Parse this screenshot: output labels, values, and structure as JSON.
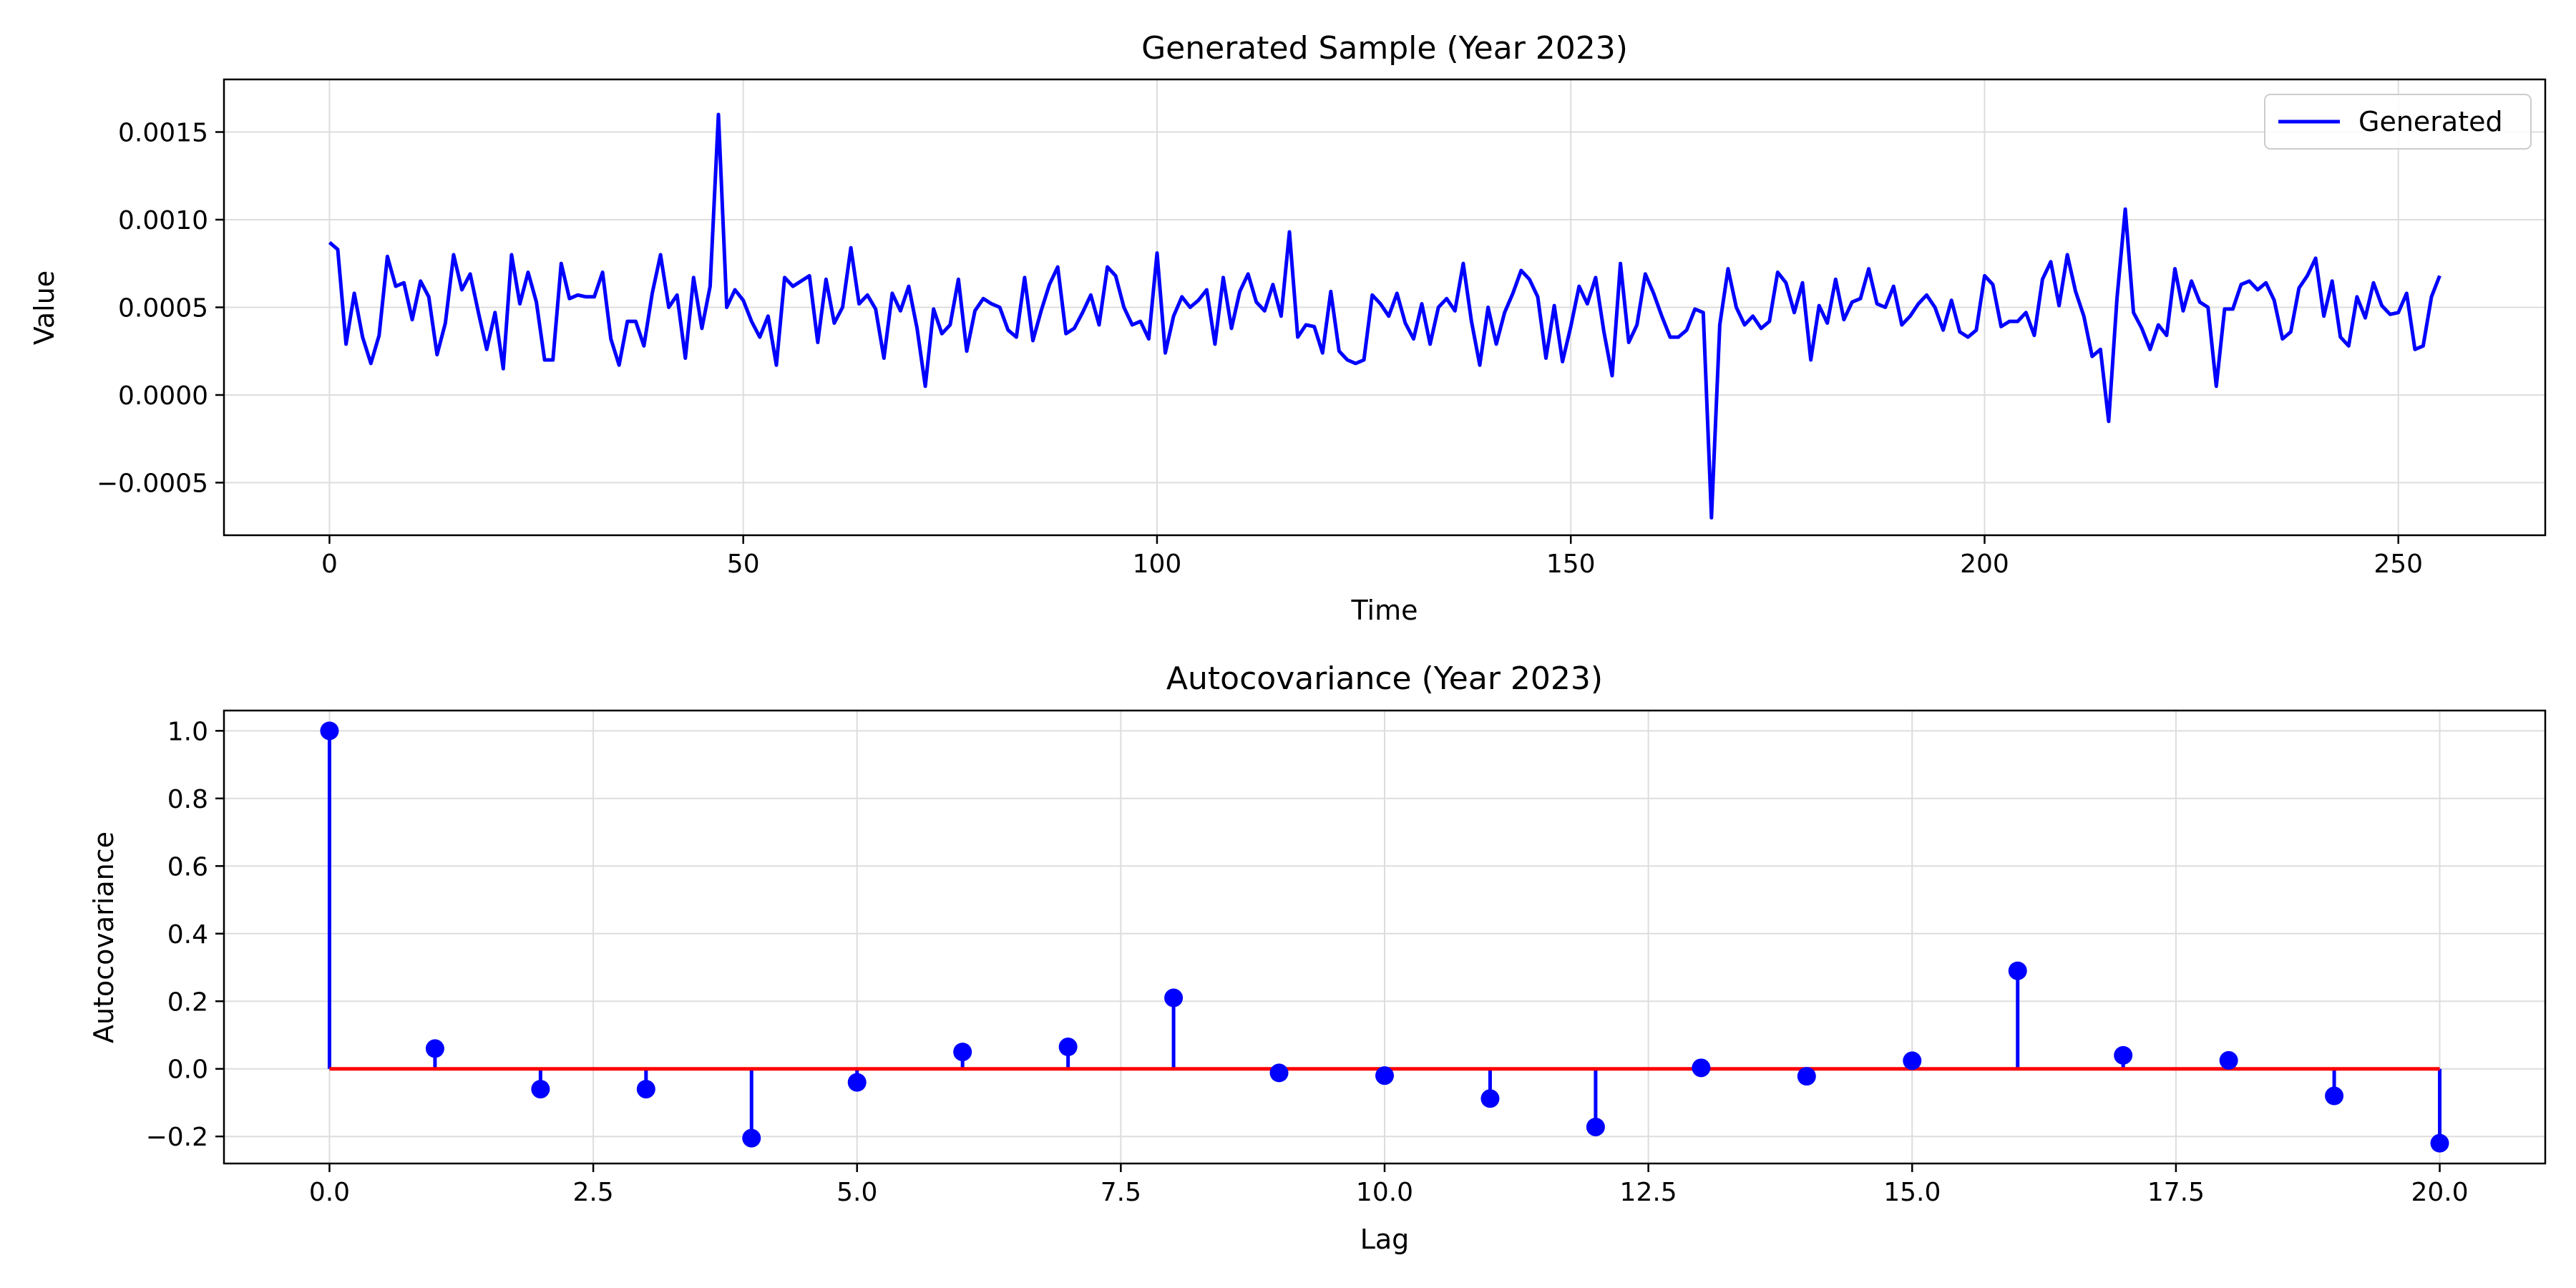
{
  "chart_data": [
    {
      "type": "line",
      "title": "Generated Sample (Year 2023)",
      "xlabel": "Time",
      "ylabel": "Value",
      "xlim": [
        -12.75,
        267.75
      ],
      "ylim": [
        -0.0008,
        0.0018
      ],
      "xticks": [
        0,
        50,
        100,
        150,
        200,
        250
      ],
      "xtick_labels": [
        "0",
        "50",
        "100",
        "150",
        "200",
        "250"
      ],
      "yticks": [
        -0.0005,
        0.0,
        0.0005,
        0.001,
        0.0015
      ],
      "ytick_labels": [
        "−0.0005",
        "0.0000",
        "0.0005",
        "0.0010",
        "0.0015"
      ],
      "grid": true,
      "legend": {
        "position": "top-right",
        "entries": [
          "Generated"
        ]
      },
      "series": [
        {
          "name": "Generated",
          "color": "#0000ff",
          "values": [
            0.00087,
            0.00083,
            0.00029,
            0.00058,
            0.00033,
            0.00018,
            0.00034,
            0.00079,
            0.00062,
            0.00064,
            0.00043,
            0.00065,
            0.00056,
            0.00023,
            0.00041,
            0.0008,
            0.0006,
            0.00069,
            0.00047,
            0.00026,
            0.00047,
            0.00015,
            0.0008,
            0.00052,
            0.0007,
            0.00053,
            0.0002,
            0.0002,
            0.00075,
            0.00055,
            0.00057,
            0.00056,
            0.00056,
            0.0007,
            0.00032,
            0.00017,
            0.00042,
            0.00042,
            0.00028,
            0.00058,
            0.0008,
            0.0005,
            0.00057,
            0.00021,
            0.00067,
            0.00038,
            0.00062,
            0.0016,
            0.0005,
            0.0006,
            0.00054,
            0.00042,
            0.00033,
            0.00045,
            0.00017,
            0.00067,
            0.00062,
            0.00065,
            0.00068,
            0.0003,
            0.00066,
            0.00041,
            0.0005,
            0.00084,
            0.00052,
            0.00057,
            0.00049,
            0.00021,
            0.00058,
            0.00048,
            0.00062,
            0.00038,
            5e-05,
            0.00049,
            0.00035,
            0.0004,
            0.00066,
            0.00025,
            0.00048,
            0.00055,
            0.00052,
            0.0005,
            0.00037,
            0.00033,
            0.00067,
            0.00031,
            0.00048,
            0.00063,
            0.00073,
            0.00035,
            0.00038,
            0.00047,
            0.00057,
            0.0004,
            0.00073,
            0.00068,
            0.0005,
            0.0004,
            0.00042,
            0.00032,
            0.00081,
            0.00024,
            0.00045,
            0.00056,
            0.0005,
            0.00054,
            0.0006,
            0.00029,
            0.00067,
            0.00038,
            0.00059,
            0.00069,
            0.00053,
            0.00048,
            0.00063,
            0.00045,
            0.00093,
            0.00033,
            0.0004,
            0.00039,
            0.00024,
            0.00059,
            0.00025,
            0.0002,
            0.00018,
            0.0002,
            0.00057,
            0.00052,
            0.00045,
            0.00058,
            0.00041,
            0.00032,
            0.00052,
            0.00029,
            0.0005,
            0.00055,
            0.00048,
            0.00075,
            0.00042,
            0.00017,
            0.0005,
            0.00029,
            0.00047,
            0.00058,
            0.00071,
            0.00066,
            0.00056,
            0.00021,
            0.00051,
            0.00019,
            0.00039,
            0.00062,
            0.00052,
            0.00067,
            0.00036,
            0.00011,
            0.00075,
            0.0003,
            0.0004,
            0.00069,
            0.00058,
            0.00045,
            0.00033,
            0.00033,
            0.00037,
            0.00049,
            0.00047,
            -0.0007,
            0.0004,
            0.00072,
            0.0005,
            0.0004,
            0.00045,
            0.00038,
            0.00042,
            0.0007,
            0.00064,
            0.00047,
            0.00064,
            0.0002,
            0.00051,
            0.00041,
            0.00066,
            0.00043,
            0.00053,
            0.00055,
            0.00072,
            0.00052,
            0.0005,
            0.00062,
            0.0004,
            0.00045,
            0.00052,
            0.00057,
            0.0005,
            0.00037,
            0.00054,
            0.00036,
            0.00033,
            0.00037,
            0.00068,
            0.00063,
            0.00039,
            0.00042,
            0.00042,
            0.00047,
            0.00034,
            0.00066,
            0.00076,
            0.00051,
            0.0008,
            0.00059,
            0.00045,
            0.00022,
            0.00026,
            -0.00015,
            0.00055,
            0.00106,
            0.00047,
            0.00038,
            0.00026,
            0.0004,
            0.00034,
            0.00072,
            0.00048,
            0.00065,
            0.00053,
            0.0005,
            5e-05,
            0.00049,
            0.00049,
            0.00063,
            0.00065,
            0.0006,
            0.00064,
            0.00054,
            0.00032,
            0.00036,
            0.00061,
            0.00068,
            0.00078,
            0.00045,
            0.00065,
            0.00033,
            0.00028,
            0.00056,
            0.00044,
            0.00064,
            0.00051,
            0.00046,
            0.00047,
            0.00058,
            0.00026,
            0.00028,
            0.00056,
            0.00068
          ]
        }
      ]
    },
    {
      "type": "stem",
      "title": "Autocovariance (Year 2023)",
      "xlabel": "Lag",
      "ylabel": "Autocovariance",
      "xlim": [
        -1.0,
        21.0
      ],
      "ylim": [
        -0.28,
        1.06
      ],
      "xticks": [
        0,
        2.5,
        5,
        7.5,
        10,
        12.5,
        15,
        17.5,
        20
      ],
      "xtick_labels": [
        "0.0",
        "2.5",
        "5.0",
        "7.5",
        "10.0",
        "12.5",
        "15.0",
        "17.5",
        "20.0"
      ],
      "yticks": [
        -0.2,
        0.0,
        0.2,
        0.4,
        0.6,
        0.8,
        1.0
      ],
      "ytick_labels": [
        "−0.2",
        "0.0",
        "0.2",
        "0.4",
        "0.6",
        "0.8",
        "1.0"
      ],
      "grid": true,
      "colors": {
        "stem": "#0000ff",
        "marker": "#0000ff",
        "baseline": "#ff0000"
      },
      "x": [
        0,
        1,
        2,
        3,
        4,
        5,
        6,
        7,
        8,
        9,
        10,
        11,
        12,
        13,
        14,
        15,
        16,
        17,
        18,
        19,
        20
      ],
      "values": [
        1.0,
        0.06,
        -0.06,
        -0.06,
        -0.205,
        -0.04,
        0.05,
        0.065,
        0.21,
        -0.012,
        -0.02,
        -0.088,
        -0.172,
        0.003,
        -0.022,
        0.024,
        0.29,
        0.04,
        0.025,
        -0.08,
        -0.22
      ]
    }
  ]
}
